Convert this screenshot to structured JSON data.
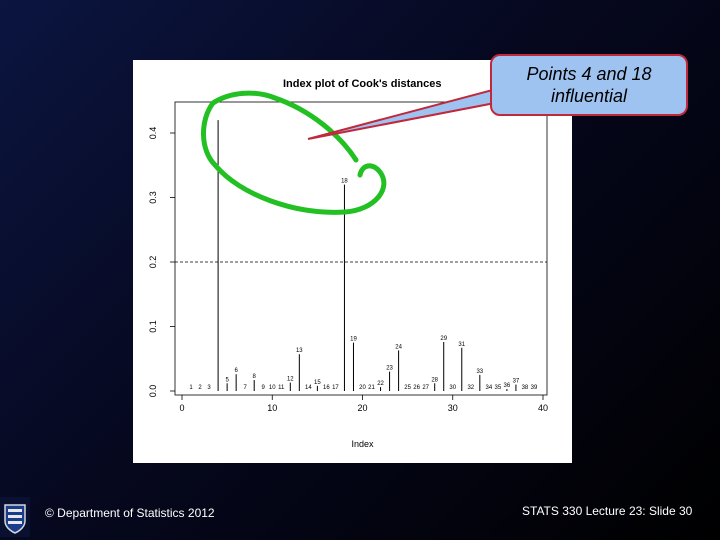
{
  "footer": {
    "left": "© Department of Statistics 2012",
    "right": "STATS 330 Lecture 23: Slide 30"
  },
  "callout": {
    "line1": "Points 4 and 18",
    "line2": "influential"
  },
  "colors": {
    "annotation_green": "#22c022",
    "arrow_red": "#c0283c",
    "callout_fill": "#9ec3f0"
  },
  "chart_data": {
    "type": "scatter",
    "style": "index plot with vertical lines (type h)",
    "title": "Index plot of Cook's distances",
    "xlabel": "Index",
    "ylabel": "",
    "xlim": [
      0,
      40
    ],
    "ylim": [
      0,
      0.42
    ],
    "xticks": [
      "0",
      "10",
      "20",
      "30",
      "40"
    ],
    "yticks": [
      "0.0",
      "0.1",
      "0.2",
      "0.3",
      "0.4"
    ],
    "grid": false,
    "reference_line": 0.2,
    "points": [
      {
        "x": 1,
        "y": 0.0,
        "label": "1"
      },
      {
        "x": 2,
        "y": 0.0,
        "label": "2"
      },
      {
        "x": 3,
        "y": 0.0,
        "label": "3"
      },
      {
        "x": 4,
        "y": 0.42,
        "label": ""
      },
      {
        "x": 5,
        "y": 0.012,
        "label": "5"
      },
      {
        "x": 6,
        "y": 0.026,
        "label": "6"
      },
      {
        "x": 7,
        "y": 0.0,
        "label": "7"
      },
      {
        "x": 8,
        "y": 0.017,
        "label": "8"
      },
      {
        "x": 9,
        "y": 0.0,
        "label": "9"
      },
      {
        "x": 10,
        "y": 0.0,
        "label": "10"
      },
      {
        "x": 11,
        "y": 0.0,
        "label": "11"
      },
      {
        "x": 12,
        "y": 0.013,
        "label": "12"
      },
      {
        "x": 13,
        "y": 0.057,
        "label": "13"
      },
      {
        "x": 14,
        "y": 0.0,
        "label": "14"
      },
      {
        "x": 15,
        "y": 0.008,
        "label": "15"
      },
      {
        "x": 16,
        "y": 0.0,
        "label": "16"
      },
      {
        "x": 17,
        "y": 0.0,
        "label": "17"
      },
      {
        "x": 18,
        "y": 0.32,
        "label": "18"
      },
      {
        "x": 19,
        "y": 0.075,
        "label": "19"
      },
      {
        "x": 20,
        "y": 0.0,
        "label": "20"
      },
      {
        "x": 21,
        "y": 0.0,
        "label": "21"
      },
      {
        "x": 22,
        "y": 0.006,
        "label": "22"
      },
      {
        "x": 23,
        "y": 0.03,
        "label": "23"
      },
      {
        "x": 24,
        "y": 0.063,
        "label": "24"
      },
      {
        "x": 25,
        "y": 0.0,
        "label": "25"
      },
      {
        "x": 26,
        "y": 0.0,
        "label": "26"
      },
      {
        "x": 27,
        "y": 0.0,
        "label": "27"
      },
      {
        "x": 28,
        "y": 0.012,
        "label": "28"
      },
      {
        "x": 29,
        "y": 0.076,
        "label": "29"
      },
      {
        "x": 30,
        "y": 0.0,
        "label": "30"
      },
      {
        "x": 31,
        "y": 0.067,
        "label": "31"
      },
      {
        "x": 32,
        "y": 0.0,
        "label": "32"
      },
      {
        "x": 33,
        "y": 0.025,
        "label": "33"
      },
      {
        "x": 34,
        "y": 0.0,
        "label": "34"
      },
      {
        "x": 35,
        "y": 0.0,
        "label": "35"
      },
      {
        "x": 36,
        "y": 0.003,
        "label": "36"
      },
      {
        "x": 37,
        "y": 0.01,
        "label": "37"
      },
      {
        "x": 38,
        "y": 0.0,
        "label": "38"
      },
      {
        "x": 39,
        "y": 0.0,
        "label": "39"
      }
    ]
  }
}
